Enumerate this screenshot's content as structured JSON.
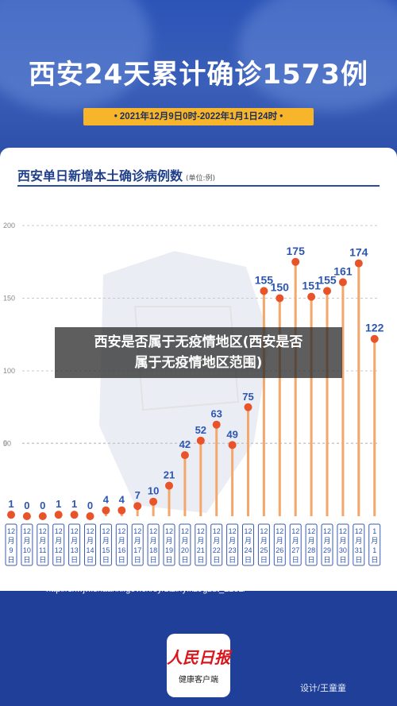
{
  "header": {
    "title": "西安24天累计确诊1573例",
    "date_range": "• 2021年12月9日0时-2022年1月1日24时 •"
  },
  "chart": {
    "title": "西安单日新增本土确诊病例数",
    "unit": "(单位:例)"
  },
  "chart_data": {
    "type": "line",
    "categories": [
      "12月9日",
      "12月10日",
      "12月11日",
      "12月12日",
      "12月13日",
      "12月14日",
      "12月15日",
      "12月16日",
      "12月17日",
      "12月18日",
      "12月19日",
      "12月20日",
      "12月21日",
      "12月22日",
      "12月23日",
      "12月24日",
      "12月25日",
      "12月26日",
      "12月27日",
      "12月28日",
      "12月29日",
      "12月30日",
      "12月31日",
      "1月1日"
    ],
    "x_month_labels": [
      "12",
      "12",
      "12",
      "12",
      "12",
      "12",
      "12",
      "12",
      "12",
      "12",
      "12",
      "12",
      "12",
      "12",
      "12",
      "12",
      "12",
      "12",
      "12",
      "12",
      "12",
      "12",
      "12",
      "1"
    ],
    "x_day_labels": [
      "9",
      "10",
      "11",
      "12",
      "13",
      "14",
      "15",
      "16",
      "17",
      "18",
      "19",
      "20",
      "21",
      "22",
      "23",
      "24",
      "25",
      "26",
      "27",
      "28",
      "29",
      "30",
      "31",
      "1"
    ],
    "values": [
      1,
      0,
      0,
      1,
      1,
      0,
      4,
      4,
      7,
      10,
      21,
      42,
      52,
      63,
      49,
      75,
      155,
      150,
      175,
      151,
      155,
      161,
      174,
      122
    ],
    "yticks": [
      0,
      50,
      100,
      150,
      200
    ],
    "ylim": [
      0,
      200
    ],
    "grid": true,
    "colors": {
      "line": "#f3a76b",
      "point": "#e8532a",
      "label": "#2d56b3",
      "grid": "#c9c9c9"
    }
  },
  "overlay": {
    "line1": "西安是否属于无疫情地区(西安是否",
    "line2": "属于无疫情地区范围)"
  },
  "footer": {
    "source_line1": "来源：陕西省卫生健康委员会,肺炎防控专题, 2022-01-02,",
    "source_line2": "http://sxwjw.shaanxi.gov.cn/sy/ztzl/fyfkzt/gzdt_2232/",
    "logo_main": "人民日报",
    "logo_sub": "健康客户端",
    "designer": "设计/王童童"
  }
}
